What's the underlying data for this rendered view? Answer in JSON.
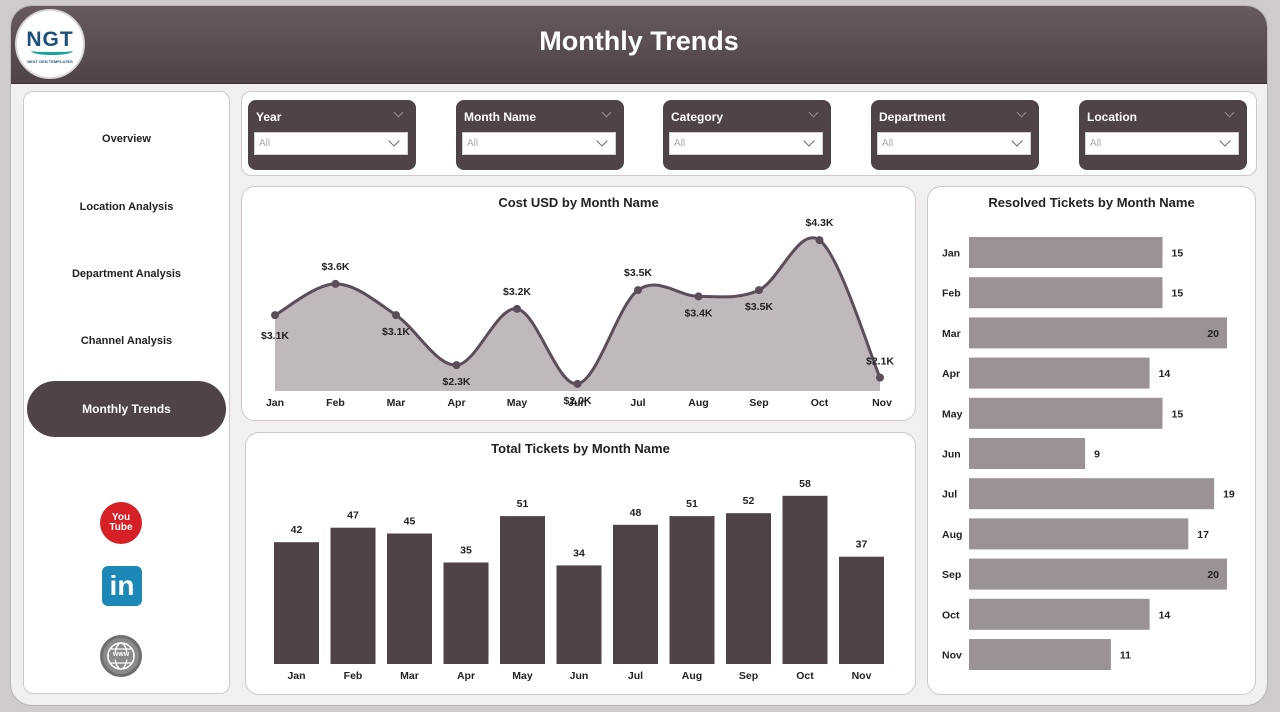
{
  "header": {
    "title": "Monthly Trends",
    "logo_text": "NGT",
    "logo_subtext": "NEXT GEN TEMPLATES"
  },
  "sidebar": {
    "items": [
      {
        "label": "Overview"
      },
      {
        "label": "Location Analysis"
      },
      {
        "label": "Department Analysis"
      },
      {
        "label": "Channel Analysis"
      },
      {
        "label": "Monthly Trends",
        "active": true
      }
    ],
    "social": [
      {
        "icon": "youtube-icon",
        "label": "You Tube"
      },
      {
        "icon": "linkedin-icon",
        "label": "in"
      },
      {
        "icon": "globe-icon",
        "label": "www"
      }
    ]
  },
  "filters": [
    {
      "label": "Year",
      "value": "All"
    },
    {
      "label": "Month Name",
      "value": "All"
    },
    {
      "label": "Category",
      "value": "All"
    },
    {
      "label": "Department",
      "value": "All"
    },
    {
      "label": "Location",
      "value": "All"
    }
  ],
  "colors": {
    "dark": "#4f4345",
    "area": "#bfb8bd",
    "line": "#5c4d5a",
    "hbar": "#9b9293"
  },
  "chart_data": [
    {
      "id": "cost",
      "type": "area",
      "title": "Cost USD by Month Name",
      "categories": [
        "Jan",
        "Feb",
        "Mar",
        "Apr",
        "May",
        "Jun",
        "Jul",
        "Aug",
        "Sep",
        "Oct",
        "Nov"
      ],
      "values": [
        3100,
        3600,
        3100,
        2300,
        3200,
        2000,
        3500,
        3400,
        3500,
        4300,
        2100
      ],
      "labels": [
        "$3.1K",
        "$3.6K",
        "$3.1K",
        "$2.3K",
        "$3.2K",
        "$2.0K",
        "$3.5K",
        "$3.4K",
        "$3.5K",
        "$4.3K",
        "$2.1K"
      ],
      "ylim": [
        1950,
        4350
      ]
    },
    {
      "id": "total",
      "type": "bar",
      "title": "Total Tickets by Month Name",
      "categories": [
        "Jan",
        "Feb",
        "Mar",
        "Apr",
        "May",
        "Jun",
        "Jul",
        "Aug",
        "Sep",
        "Oct",
        "Nov"
      ],
      "values": [
        42,
        47,
        45,
        35,
        51,
        34,
        48,
        51,
        52,
        58,
        37
      ],
      "ylim": [
        0,
        60
      ]
    },
    {
      "id": "resolved",
      "type": "bar",
      "orientation": "horizontal",
      "title": "Resolved Tickets by Month Name",
      "categories": [
        "Jan",
        "Feb",
        "Mar",
        "Apr",
        "May",
        "Jun",
        "Jul",
        "Aug",
        "Sep",
        "Oct",
        "Nov"
      ],
      "values": [
        15,
        15,
        20,
        14,
        15,
        9,
        19,
        17,
        20,
        14,
        11
      ],
      "xlim": [
        0,
        20
      ]
    }
  ]
}
